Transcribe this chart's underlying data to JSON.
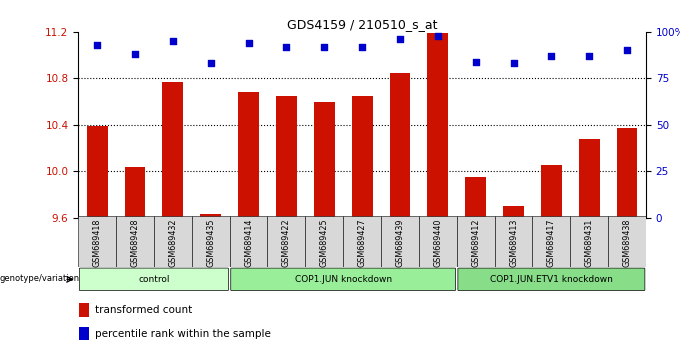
{
  "title": "GDS4159 / 210510_s_at",
  "samples": [
    "GSM689418",
    "GSM689428",
    "GSM689432",
    "GSM689435",
    "GSM689414",
    "GSM689422",
    "GSM689425",
    "GSM689427",
    "GSM689439",
    "GSM689440",
    "GSM689412",
    "GSM689413",
    "GSM689417",
    "GSM689431",
    "GSM689438"
  ],
  "bar_values": [
    10.39,
    10.04,
    10.77,
    9.63,
    10.68,
    10.65,
    10.6,
    10.65,
    10.85,
    11.19,
    9.95,
    9.7,
    10.05,
    10.28,
    10.37
  ],
  "dot_values_pct": [
    93,
    88,
    95,
    83,
    94,
    92,
    92,
    92,
    96,
    98,
    84,
    83,
    87,
    87,
    90
  ],
  "ymin": 9.6,
  "ymax": 11.2,
  "yticks": [
    9.6,
    10.0,
    10.4,
    10.8,
    11.2
  ],
  "right_yticks": [
    0,
    25,
    50,
    75,
    100
  ],
  "groups": [
    {
      "label": "control",
      "start": 0,
      "end": 4,
      "color": "#ccffcc"
    },
    {
      "label": "COP1.JUN knockdown",
      "start": 4,
      "end": 10,
      "color": "#99ee99"
    },
    {
      "label": "COP1.JUN.ETV1 knockdown",
      "start": 10,
      "end": 15,
      "color": "#88dd88"
    }
  ],
  "bar_color": "#cc1100",
  "dot_color": "#0000cc",
  "plot_bg": "#ffffff",
  "legend_bar_label": "transformed count",
  "legend_dot_label": "percentile rank within the sample",
  "genotype_label": "genotype/variation"
}
